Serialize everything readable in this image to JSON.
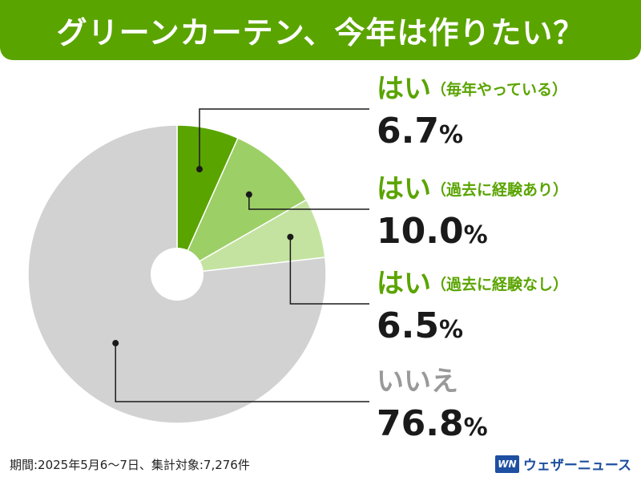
{
  "header": {
    "title": "グリーンカーテン、今年は作りたい？"
  },
  "chart_data": {
    "type": "pie",
    "title": "グリーンカーテン、今年は作りたい？",
    "slices": [
      {
        "label": "はい",
        "sublabel": "（毎年やっている）",
        "value": 6.7,
        "display": "6.7",
        "color": "#5aa400",
        "label_color": "#5aa400"
      },
      {
        "label": "はい",
        "sublabel": "（過去に経験あり）",
        "value": 10.0,
        "display": "10.0",
        "color": "#9ccf66",
        "label_color": "#5aa400"
      },
      {
        "label": "はい",
        "sublabel": "（過去に経験なし）",
        "value": 6.5,
        "display": "6.5",
        "color": "#c4e3a1",
        "label_color": "#5aa400"
      },
      {
        "label": "いいえ",
        "sublabel": "",
        "value": 76.8,
        "display": "76.8",
        "color": "#d2d2d2",
        "label_color": "#999999"
      }
    ],
    "unit": "%"
  },
  "footer": {
    "note": "期間:2025年5月6〜7日、集計対象:7,276件",
    "brand_logo": "WN",
    "brand_name": "ウェザーニュース"
  }
}
